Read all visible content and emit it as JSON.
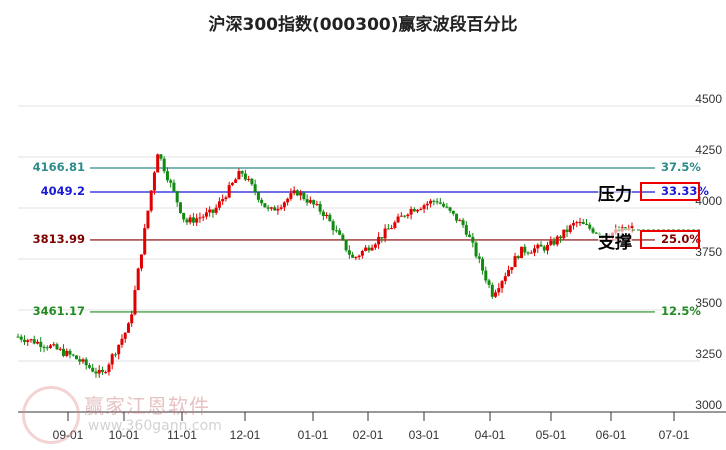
{
  "title": "沪深300指数(000300)赢家波段百分比",
  "chart_data": {
    "type": "candlestick",
    "title": "沪深300指数(000300)赢家波段百分比",
    "xlabel": "",
    "ylabel": "",
    "ylim": [
      3000,
      4500
    ],
    "y_ticks": [
      "4500",
      "4250",
      "4000",
      "3750",
      "3500",
      "3250",
      "3000"
    ],
    "x_ticks": [
      "09-01",
      "10-01",
      "11-01",
      "12-01",
      "01-01",
      "02-01",
      "03-01",
      "04-01",
      "05-01",
      "06-01",
      "07-01"
    ],
    "levels": [
      {
        "price": "4166.81",
        "percent": "37.5%",
        "color": "#2e8b8b"
      },
      {
        "price": "4049.2",
        "percent": "33.33%",
        "color": "#1a1ad6"
      },
      {
        "price": "3813.99",
        "percent": "25.0%",
        "color": "#800000"
      },
      {
        "price": "3461.17",
        "percent": "12.5%",
        "color": "#228b22"
      }
    ],
    "annotations": [
      {
        "text": "压力",
        "target": "33.33%"
      },
      {
        "text": "支撑",
        "target": "25.0%"
      }
    ],
    "approx_close_series": [
      {
        "date": "08-15",
        "close": 3340
      },
      {
        "date": "09-01",
        "close": 3300
      },
      {
        "date": "09-15",
        "close": 3240
      },
      {
        "date": "09-23",
        "close": 3150
      },
      {
        "date": "09-27",
        "close": 3400
      },
      {
        "date": "10-08",
        "close": 4250
      },
      {
        "date": "10-15",
        "close": 3900
      },
      {
        "date": "10-25",
        "close": 3950
      },
      {
        "date": "11-08",
        "close": 4150
      },
      {
        "date": "11-20",
        "close": 3950
      },
      {
        "date": "12-10",
        "close": 4050
      },
      {
        "date": "12-31",
        "close": 3940
      },
      {
        "date": "01-13",
        "close": 3720
      },
      {
        "date": "02-01",
        "close": 3830
      },
      {
        "date": "02-20",
        "close": 3960
      },
      {
        "date": "03-15",
        "close": 4010
      },
      {
        "date": "03-31",
        "close": 3880
      },
      {
        "date": "04-07",
        "close": 3550
      },
      {
        "date": "04-20",
        "close": 3760
      },
      {
        "date": "05-01",
        "close": 3780
      },
      {
        "date": "05-15",
        "close": 3900
      },
      {
        "date": "05-30",
        "close": 3840
      },
      {
        "date": "06-13",
        "close": 3870
      }
    ],
    "grid": true,
    "legend": "none"
  },
  "watermark": {
    "text": "赢家江恩软件",
    "url": "www.360gann.com"
  }
}
